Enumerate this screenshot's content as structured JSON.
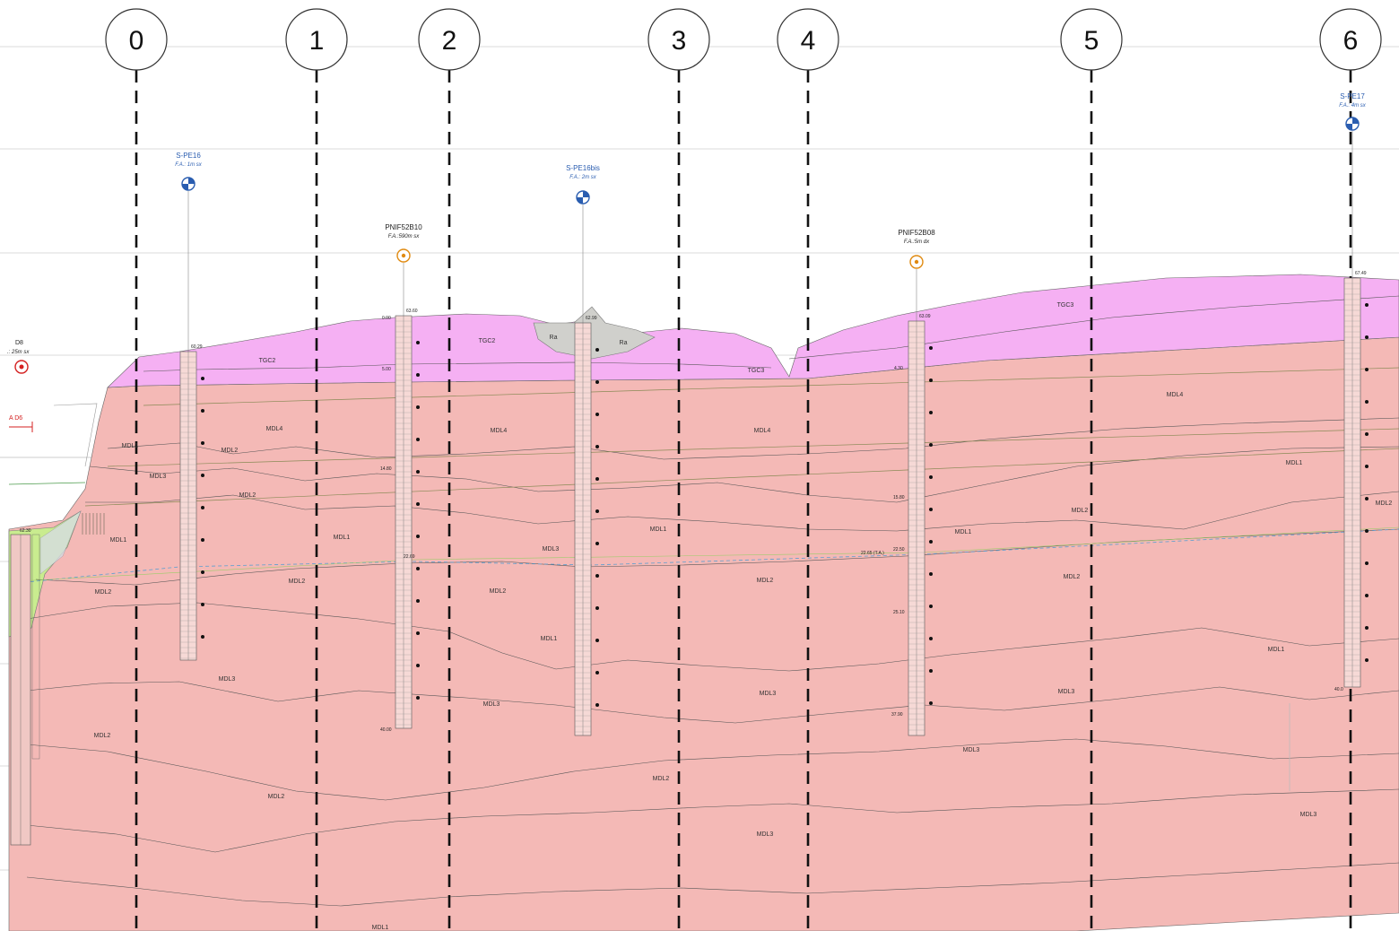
{
  "axes": [
    {
      "label": "0"
    },
    {
      "label": "1"
    },
    {
      "label": "2"
    },
    {
      "label": "3"
    },
    {
      "label": "4"
    },
    {
      "label": "5"
    },
    {
      "label": "6"
    }
  ],
  "boreholes": [
    {
      "name": "S-PE16",
      "offset": "F.A.: 1m sx",
      "elev": "60.29",
      "color": "#2a5db0"
    },
    {
      "name": "PNIF52B10",
      "offset": "F.A.:590m sx",
      "elev": "63.60",
      "color": "#e08a10"
    },
    {
      "name": "S-PE16bis",
      "offset": "F.A.: 2m sx",
      "elev": "62.99",
      "color": "#2a5db0"
    },
    {
      "name": "PNIF52B08",
      "offset": "F.A.:5m dx",
      "elev": "63.09",
      "color": "#e08a10"
    },
    {
      "name": "S-PE17",
      "offset": "F.A.: 4m sx",
      "elev": "67.49",
      "color": "#2a5db0"
    }
  ],
  "left_panel": {
    "name": "D8",
    "offset": ".: 25m sx",
    "ref": "A D6",
    "elev": "62.30"
  },
  "units": [
    {
      "label": "TGC2"
    },
    {
      "label": "TGC2"
    },
    {
      "label": "TGC3"
    },
    {
      "label": "TGC3"
    },
    {
      "label": "Ra"
    },
    {
      "label": "Ra"
    },
    {
      "label": "MDL4"
    },
    {
      "label": "MDL4"
    },
    {
      "label": "MDL4"
    },
    {
      "label": "MDL4"
    },
    {
      "label": "MDL1"
    },
    {
      "label": "MDL1"
    },
    {
      "label": "MDL1"
    },
    {
      "label": "MDL1"
    },
    {
      "label": "MDL1"
    },
    {
      "label": "MDL1"
    },
    {
      "label": "MDL1"
    },
    {
      "label": "MDL1"
    },
    {
      "label": "MDL2"
    },
    {
      "label": "MDL2"
    },
    {
      "label": "MDL2"
    },
    {
      "label": "MDL2"
    },
    {
      "label": "MDL2"
    },
    {
      "label": "MDL2"
    },
    {
      "label": "MDL2"
    },
    {
      "label": "MDL2"
    },
    {
      "label": "MDL2"
    },
    {
      "label": "MDL2"
    },
    {
      "label": "MDL2"
    },
    {
      "label": "MDL2"
    },
    {
      "label": "MDL3"
    },
    {
      "label": "MDL3"
    },
    {
      "label": "MDL3"
    },
    {
      "label": "MDL3"
    },
    {
      "label": "MDL3"
    },
    {
      "label": "MDL3"
    },
    {
      "label": "MDL3"
    },
    {
      "label": "MDL3"
    },
    {
      "label": "MDL3"
    },
    {
      "label": "MDL1"
    }
  ],
  "water_table": {
    "label": "22.65 (T.A.)"
  },
  "depth_marks": [
    {
      "label": "0.00"
    },
    {
      "label": "5.00"
    },
    {
      "label": "14.80"
    },
    {
      "label": "40.00"
    },
    {
      "label": "4.30"
    },
    {
      "label": "15.80"
    },
    {
      "label": "25.10"
    },
    {
      "label": "37.90"
    },
    {
      "label": "22.69"
    },
    {
      "label": "22.50"
    },
    {
      "label": "40.0"
    }
  ],
  "colors": {
    "mdl": "#f4b9b6",
    "tgc": "#f5b0f3",
    "ra": "#c8c8c8",
    "bc": "#c9ec8f",
    "axis_line": "#111111",
    "water": "#7a9cd8"
  }
}
